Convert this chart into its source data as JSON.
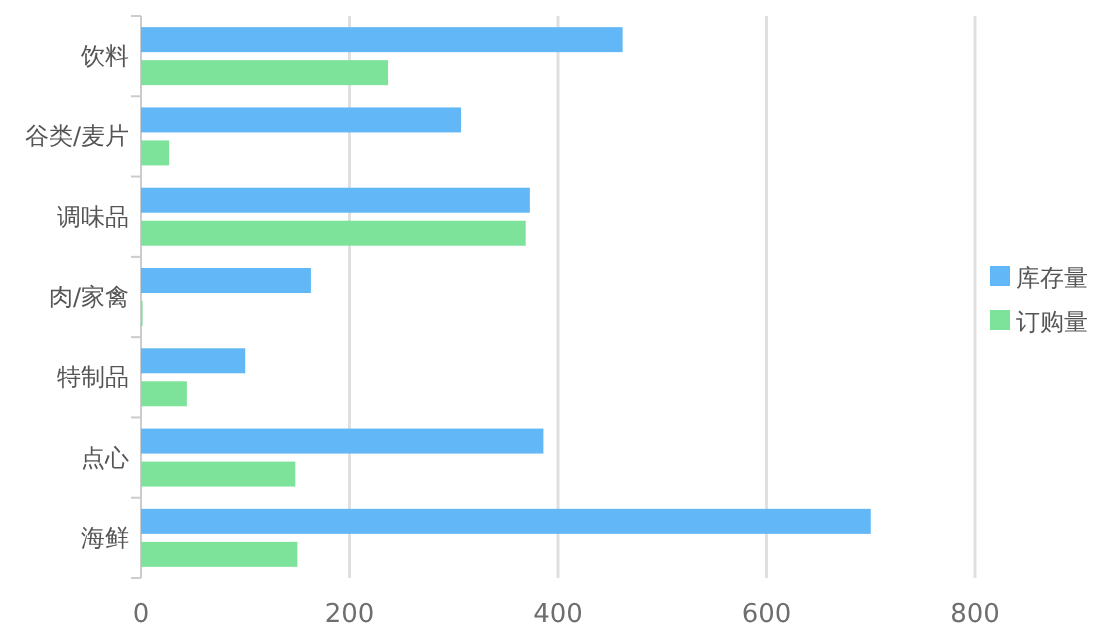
{
  "chart_data": {
    "type": "bar",
    "orientation": "horizontal",
    "categories": [
      "饮料",
      "谷类/麦片",
      "调味品",
      "肉/家禽",
      "特制品",
      "点心",
      "海鲜"
    ],
    "series": [
      {
        "name": "库存量",
        "color": "#62b8f6",
        "values": [
          462,
          307,
          373,
          163,
          100,
          386,
          700
        ]
      },
      {
        "name": "订购量",
        "color": "#7de29a",
        "values": [
          237,
          27,
          369,
          1,
          44,
          148,
          150
        ]
      }
    ],
    "xlim": [
      0,
      800
    ],
    "xticks": [
      0,
      200,
      400,
      600,
      800
    ],
    "grid": "x",
    "legend": "right"
  }
}
